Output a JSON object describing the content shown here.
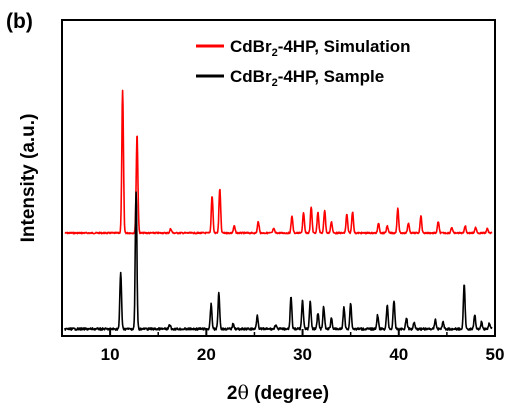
{
  "chart_data": {
    "type": "line",
    "panel_label": "(b)",
    "xlabel": {
      "prefix": "2",
      "theta": "θ",
      "suffix": " (degree)"
    },
    "ylabel": "Intensity (a.u.)",
    "xlim": [
      5,
      50
    ],
    "x_ticks": [
      10,
      20,
      30,
      40,
      50
    ],
    "legend_position": "top-right",
    "series": [
      {
        "name": {
          "base": "CdBr",
          "sub": "2",
          "rest": "-4HP, Simulation"
        },
        "color": "#ff0000",
        "peaks": [
          [
            11.3,
            1.0
          ],
          [
            12.8,
            0.7
          ],
          [
            16.3,
            0.03
          ],
          [
            20.6,
            0.26
          ],
          [
            21.4,
            0.31
          ],
          [
            22.9,
            0.05
          ],
          [
            25.4,
            0.08
          ],
          [
            27.0,
            0.03
          ],
          [
            28.9,
            0.12
          ],
          [
            30.1,
            0.14
          ],
          [
            30.9,
            0.18
          ],
          [
            31.6,
            0.15
          ],
          [
            32.3,
            0.16
          ],
          [
            33.0,
            0.08
          ],
          [
            34.6,
            0.13
          ],
          [
            35.2,
            0.15
          ],
          [
            37.9,
            0.07
          ],
          [
            38.8,
            0.05
          ],
          [
            39.9,
            0.17
          ],
          [
            41.0,
            0.07
          ],
          [
            42.3,
            0.12
          ],
          [
            44.1,
            0.08
          ],
          [
            45.5,
            0.04
          ],
          [
            46.9,
            0.05
          ],
          [
            48.0,
            0.04
          ],
          [
            49.2,
            0.03
          ]
        ]
      },
      {
        "name": {
          "base": "CdBr",
          "sub": "2",
          "rest": "-4HP, Sample"
        },
        "color": "#000000",
        "peaks": [
          [
            11.1,
            0.41
          ],
          [
            12.7,
            1.0
          ],
          [
            16.2,
            0.03
          ],
          [
            20.5,
            0.18
          ],
          [
            21.3,
            0.27
          ],
          [
            22.8,
            0.04
          ],
          [
            25.3,
            0.1
          ],
          [
            27.2,
            0.03
          ],
          [
            28.8,
            0.24
          ],
          [
            30.0,
            0.21
          ],
          [
            30.8,
            0.2
          ],
          [
            31.6,
            0.12
          ],
          [
            32.2,
            0.16
          ],
          [
            33.0,
            0.08
          ],
          [
            34.3,
            0.16
          ],
          [
            35.0,
            0.19
          ],
          [
            37.8,
            0.1
          ],
          [
            38.8,
            0.17
          ],
          [
            39.5,
            0.21
          ],
          [
            40.8,
            0.08
          ],
          [
            41.6,
            0.05
          ],
          [
            43.8,
            0.07
          ],
          [
            44.6,
            0.05
          ],
          [
            46.8,
            0.32
          ],
          [
            47.9,
            0.1
          ],
          [
            48.6,
            0.05
          ],
          [
            49.4,
            0.04
          ]
        ]
      }
    ]
  }
}
